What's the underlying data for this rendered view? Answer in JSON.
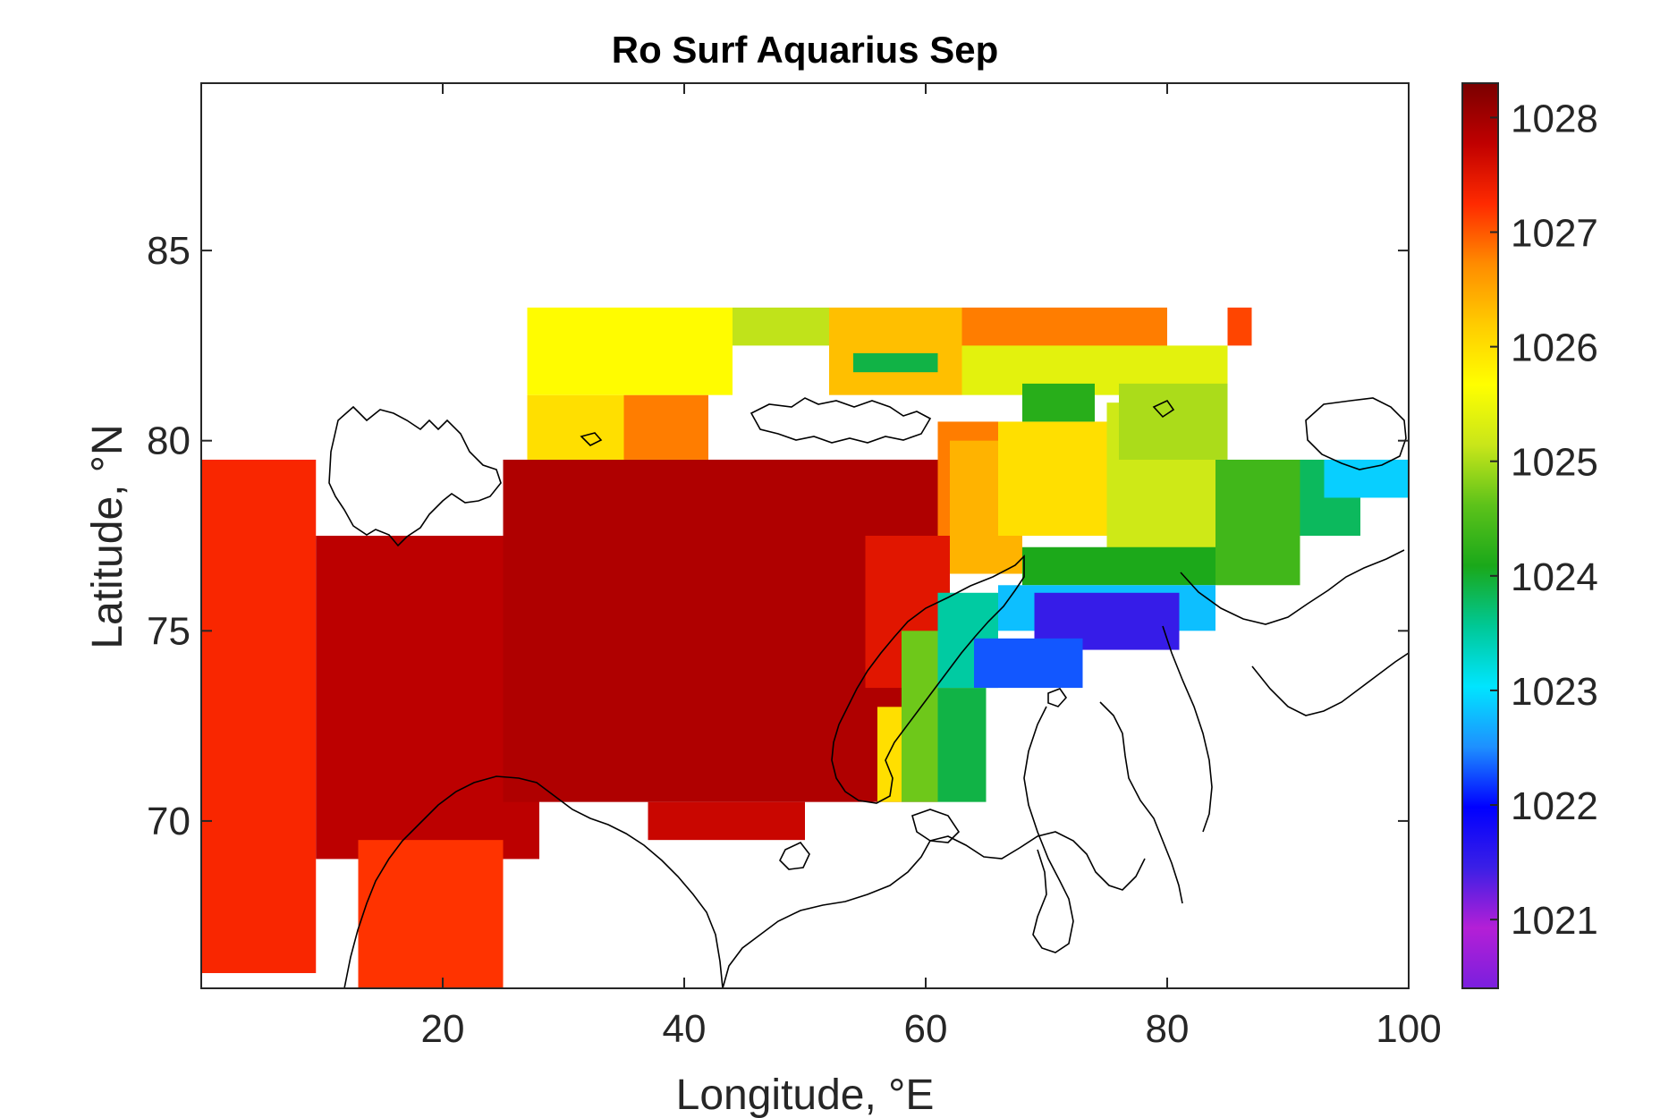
{
  "chart_data": {
    "type": "heatmap",
    "title": "Ro Surf Aquarius Sep",
    "xlabel": "Longitude, °E",
    "ylabel": "Latitude, °N",
    "xlim": [
      0,
      100
    ],
    "ylim": [
      65.6,
      89.4
    ],
    "xticks": [
      20,
      40,
      60,
      80,
      100
    ],
    "yticks": [
      70,
      75,
      80,
      85
    ],
    "colorbar": {
      "min": 1020.4,
      "max": 1028.3,
      "ticks": [
        1021,
        1022,
        1023,
        1024,
        1025,
        1026,
        1027,
        1028
      ],
      "colormap": [
        "#7a1fde",
        "#b41fd6",
        "#3b1fe6",
        "#0000ff",
        "#1e90ff",
        "#00e5ff",
        "#00c896",
        "#1aa81a",
        "#5cc21a",
        "#c8e61a",
        "#ffff00",
        "#ffcc00",
        "#ff8c00",
        "#ff2a00",
        "#c00000",
        "#7a0000"
      ]
    },
    "regions": [
      {
        "lon": [
          0,
          9.5
        ],
        "lat": [
          66,
          79.5
        ],
        "value": 1027.3
      },
      {
        "lon": [
          9.5,
          28
        ],
        "lat": [
          69,
          77.5
        ],
        "value": 1027.8
      },
      {
        "lon": [
          13,
          25
        ],
        "lat": [
          65.6,
          69.5
        ],
        "value": 1027.2
      },
      {
        "lon": [
          25,
          61
        ],
        "lat": [
          70.5,
          79.5
        ],
        "value": 1027.9
      },
      {
        "lon": [
          37,
          50
        ],
        "lat": [
          69.5,
          70.5
        ],
        "value": 1027.7
      },
      {
        "lon": [
          27,
          35
        ],
        "lat": [
          79.5,
          81.2
        ],
        "value": 1026.0
      },
      {
        "lon": [
          35,
          42
        ],
        "lat": [
          79.5,
          81.2
        ],
        "value": 1026.8
      },
      {
        "lon": [
          55,
          62
        ],
        "lat": [
          73.5,
          77.5
        ],
        "value": 1027.5
      },
      {
        "lon": [
          61,
          66
        ],
        "lat": [
          77.5,
          80.5
        ],
        "value": 1026.8
      },
      {
        "lon": [
          62,
          68
        ],
        "lat": [
          76.5,
          80
        ],
        "value": 1026.4
      },
      {
        "lon": [
          66,
          75
        ],
        "lat": [
          77.5,
          80.5
        ],
        "value": 1026.0
      },
      {
        "lon": [
          75,
          84
        ],
        "lat": [
          77,
          81
        ],
        "value": 1025.2
      },
      {
        "lon": [
          84,
          91
        ],
        "lat": [
          76.2,
          79.5
        ],
        "value": 1024.4
      },
      {
        "lon": [
          91,
          96
        ],
        "lat": [
          77.5,
          79.5
        ],
        "value": 1023.8
      },
      {
        "lon": [
          93,
          100
        ],
        "lat": [
          78.5,
          79.5
        ],
        "value": 1022.9
      },
      {
        "lon": [
          68,
          84
        ],
        "lat": [
          76.2,
          77.2
        ],
        "value": 1024.1
      },
      {
        "lon": [
          66,
          84
        ],
        "lat": [
          75,
          76.2
        ],
        "value": 1022.8
      },
      {
        "lon": [
          69,
          81
        ],
        "lat": [
          74.5,
          76
        ],
        "value": 1021.5
      },
      {
        "lon": [
          61,
          66
        ],
        "lat": [
          73.5,
          76
        ],
        "value": 1023.5
      },
      {
        "lon": [
          64,
          73
        ],
        "lat": [
          73.5,
          74.8
        ],
        "value": 1022.3
      },
      {
        "lon": [
          58,
          61
        ],
        "lat": [
          70.5,
          75
        ],
        "value": 1024.7
      },
      {
        "lon": [
          61,
          65
        ],
        "lat": [
          70.5,
          73.5
        ],
        "value": 1023.9
      },
      {
        "lon": [
          56,
          58
        ],
        "lat": [
          70.5,
          73
        ],
        "value": 1026.0
      },
      {
        "lon": [
          27,
          44
        ],
        "lat": [
          81.2,
          83.5
        ],
        "value": 1025.7
      },
      {
        "lon": [
          44,
          52
        ],
        "lat": [
          82.5,
          83.5
        ],
        "value": 1025.1
      },
      {
        "lon": [
          52,
          63
        ],
        "lat": [
          81.2,
          83.5
        ],
        "value": 1026.3
      },
      {
        "lon": [
          63,
          80
        ],
        "lat": [
          82,
          83.5
        ],
        "value": 1026.8
      },
      {
        "lon": [
          63,
          85
        ],
        "lat": [
          81.2,
          82.5
        ],
        "value": 1025.4
      },
      {
        "lon": [
          85,
          87
        ],
        "lat": [
          82.5,
          83.5
        ],
        "value": 1027.1
      },
      {
        "lon": [
          68,
          74
        ],
        "lat": [
          80.5,
          81.5
        ],
        "value": 1024.2
      },
      {
        "lon": [
          54,
          61
        ],
        "lat": [
          81.8,
          82.3
        ],
        "value": 1023.9
      },
      {
        "lon": [
          76,
          85
        ],
        "lat": [
          79.5,
          81.5
        ],
        "value": 1025.0
      }
    ]
  }
}
